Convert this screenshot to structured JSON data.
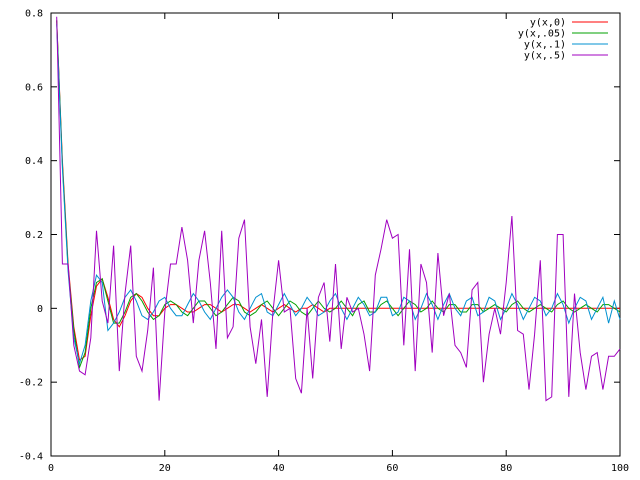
{
  "chart_data": {
    "type": "line",
    "title": "",
    "xlabel": "",
    "ylabel": "",
    "xlim": [
      0,
      100
    ],
    "ylim": [
      -0.4,
      0.8
    ],
    "x_ticks": [
      0,
      20,
      40,
      60,
      80,
      100
    ],
    "y_ticks": [
      -0.4,
      -0.2,
      0,
      0.2,
      0.4,
      0.6,
      0.8
    ],
    "x_tick_labels": [
      "0",
      "20",
      "40",
      "60",
      "80",
      "100"
    ],
    "y_tick_labels": [
      "-0.4",
      "-0.2",
      "0",
      "0.2",
      "0.4",
      "0.6",
      "0.8"
    ],
    "grid": false,
    "legend_position": "top-right",
    "x": [
      1,
      2,
      3,
      4,
      5,
      6,
      7,
      8,
      9,
      10,
      11,
      12,
      13,
      14,
      15,
      16,
      17,
      18,
      19,
      20,
      21,
      22,
      23,
      24,
      25,
      26,
      27,
      28,
      29,
      30,
      31,
      32,
      33,
      34,
      35,
      36,
      37,
      38,
      39,
      40,
      41,
      42,
      43,
      44,
      45,
      46,
      47,
      48,
      49,
      50,
      51,
      52,
      53,
      54,
      55,
      56,
      57,
      58,
      59,
      60,
      61,
      62,
      63,
      64,
      65,
      66,
      67,
      68,
      69,
      70,
      71,
      72,
      73,
      74,
      75,
      76,
      77,
      78,
      79,
      80,
      81,
      82,
      83,
      84,
      85,
      86,
      87,
      88,
      89,
      90,
      91,
      92,
      93,
      94,
      95,
      96,
      97,
      98,
      99,
      100
    ],
    "series": [
      {
        "name": "y(x,0)",
        "color": "#ff0000",
        "values": [
          0.78,
          0.4,
          0.12,
          -0.05,
          -0.14,
          -0.13,
          -0.02,
          0.06,
          0.08,
          0.03,
          -0.03,
          -0.05,
          -0.02,
          0.02,
          0.04,
          0.03,
          0.0,
          -0.02,
          -0.02,
          0.0,
          0.01,
          0.01,
          0.0,
          -0.01,
          -0.01,
          0.0,
          0.01,
          0.01,
          0.0,
          -0.01,
          0.0,
          0.01,
          0.01,
          0.0,
          -0.01,
          0.0,
          0.01,
          0.0,
          -0.01,
          0.0,
          0.01,
          0.0,
          -0.01,
          0.0,
          0.0,
          0.01,
          0.0,
          -0.01,
          0.0,
          0.0,
          0.0,
          0.0,
          0.0,
          0.0,
          0.0,
          0.0,
          0.0,
          0.0,
          0.0,
          0.0,
          0.0,
          0.0,
          0.0,
          0.0,
          0.0,
          0.0,
          0.0,
          0.0,
          0.0,
          0.0,
          0.0,
          0.0,
          0.0,
          0.0,
          0.0,
          0.0,
          0.0,
          0.0,
          0.0,
          0.0,
          0.0,
          0.0,
          0.0,
          0.0,
          0.0,
          0.0,
          0.0,
          0.0,
          0.0,
          0.0,
          0.0,
          0.0,
          0.0,
          0.0,
          0.0,
          0.0,
          0.0,
          0.0,
          0.0,
          0.0
        ]
      },
      {
        "name": "y(x,.05)",
        "color": "#00a000",
        "values": [
          0.78,
          0.39,
          0.11,
          -0.06,
          -0.16,
          -0.12,
          0.0,
          0.07,
          0.08,
          0.02,
          -0.04,
          -0.04,
          -0.01,
          0.03,
          0.04,
          0.02,
          -0.01,
          -0.03,
          -0.02,
          0.01,
          0.02,
          0.01,
          -0.01,
          -0.02,
          0.0,
          0.02,
          0.02,
          0.0,
          -0.02,
          -0.01,
          0.01,
          0.03,
          0.02,
          -0.01,
          -0.02,
          -0.01,
          0.01,
          0.02,
          0.0,
          -0.02,
          0.0,
          0.02,
          0.01,
          -0.01,
          -0.02,
          0.0,
          0.02,
          0.0,
          -0.01,
          0.0,
          0.02,
          0.0,
          -0.02,
          0.01,
          0.02,
          -0.01,
          -0.01,
          0.01,
          0.02,
          0.0,
          -0.02,
          0.0,
          0.02,
          0.01,
          -0.01,
          0.0,
          0.02,
          0.0,
          -0.01,
          0.01,
          0.01,
          -0.01,
          -0.01,
          0.01,
          0.01,
          -0.01,
          0.0,
          0.01,
          0.0,
          -0.01,
          0.01,
          0.02,
          0.0,
          -0.01,
          0.0,
          0.01,
          0.0,
          -0.01,
          0.01,
          0.02,
          0.0,
          -0.01,
          0.0,
          0.01,
          0.0,
          -0.01,
          0.01,
          0.01,
          0.0,
          -0.01
        ]
      },
      {
        "name": "y(x,.1)",
        "color": "#0090d0",
        "values": [
          0.77,
          0.38,
          0.1,
          -0.08,
          -0.15,
          -0.1,
          0.02,
          0.09,
          0.07,
          -0.06,
          -0.04,
          -0.01,
          0.03,
          0.05,
          0.02,
          -0.02,
          -0.03,
          -0.01,
          0.02,
          0.03,
          0.0,
          -0.02,
          -0.02,
          0.01,
          0.04,
          0.02,
          -0.01,
          -0.03,
          0.0,
          0.03,
          0.05,
          0.03,
          -0.01,
          -0.03,
          0.0,
          0.03,
          0.04,
          -0.01,
          -0.02,
          0.01,
          0.04,
          0.01,
          -0.02,
          0.0,
          0.03,
          0.01,
          -0.02,
          -0.01,
          0.02,
          0.04,
          0.0,
          -0.03,
          0.0,
          0.03,
          0.01,
          -0.02,
          -0.01,
          0.03,
          0.03,
          -0.02,
          -0.01,
          0.03,
          0.02,
          -0.03,
          0.0,
          0.04,
          0.01,
          -0.03,
          0.01,
          0.04,
          0.0,
          -0.02,
          0.02,
          0.03,
          -0.02,
          -0.01,
          0.03,
          0.02,
          -0.03,
          0.0,
          0.04,
          0.01,
          -0.03,
          0.0,
          0.03,
          0.02,
          -0.02,
          0.0,
          0.04,
          0.01,
          -0.04,
          0.0,
          0.03,
          0.02,
          -0.03,
          0.0,
          0.03,
          -0.04,
          0.02,
          -0.03
        ]
      },
      {
        "name": "y(x,.5)",
        "color": "#a000c0",
        "values": [
          0.79,
          0.12,
          0.12,
          -0.1,
          -0.17,
          -0.18,
          -0.08,
          0.21,
          0.02,
          -0.04,
          0.17,
          -0.17,
          0.04,
          0.17,
          -0.13,
          -0.17,
          -0.06,
          0.11,
          -0.25,
          -0.01,
          0.12,
          0.12,
          0.22,
          0.13,
          -0.04,
          0.13,
          0.21,
          0.07,
          -0.11,
          0.21,
          -0.08,
          -0.05,
          0.19,
          0.24,
          -0.05,
          -0.15,
          -0.03,
          -0.24,
          -0.01,
          0.13,
          -0.01,
          0.0,
          -0.19,
          -0.23,
          0.0,
          -0.19,
          0.03,
          0.07,
          -0.09,
          0.12,
          -0.11,
          0.03,
          -0.01,
          0.0,
          -0.07,
          -0.17,
          0.09,
          0.16,
          0.24,
          0.19,
          0.2,
          -0.1,
          0.16,
          -0.17,
          0.12,
          0.07,
          -0.12,
          0.15,
          -0.02,
          0.04,
          -0.1,
          -0.12,
          -0.16,
          0.05,
          0.07,
          -0.2,
          -0.07,
          0.0,
          -0.07,
          0.07,
          0.25,
          -0.06,
          -0.07,
          -0.22,
          -0.07,
          0.13,
          -0.25,
          -0.24,
          0.2,
          0.2,
          -0.24,
          0.04,
          -0.12,
          -0.22,
          -0.13,
          -0.12,
          -0.22,
          -0.13,
          -0.13,
          -0.11
        ]
      }
    ]
  }
}
